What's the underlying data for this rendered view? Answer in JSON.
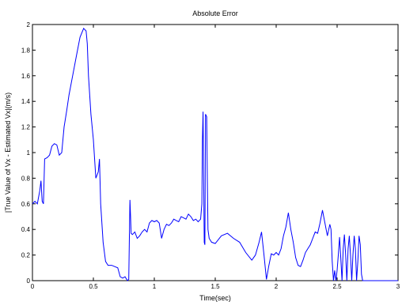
{
  "chart_data": {
    "type": "line",
    "title": "Absolute Error",
    "xlabel": "Time(sec)",
    "ylabel": "|True Value of Vx - Estimated Vx|(m/s)",
    "xlim": [
      0,
      3
    ],
    "ylim": [
      0,
      2
    ],
    "x_ticks": [
      0,
      0.5,
      1,
      1.5,
      2,
      2.5,
      3
    ],
    "x_tick_labels": [
      "0",
      "0.5",
      "1",
      "1.5",
      "2",
      "2.5",
      "3"
    ],
    "y_ticks": [
      0,
      0.2,
      0.4,
      0.6,
      0.8,
      1,
      1.2,
      1.4,
      1.6,
      1.8,
      2
    ],
    "y_tick_labels": [
      "0",
      "0.2",
      "0.4",
      "0.6",
      "0.8",
      "1",
      "1.2",
      "1.4",
      "1.6",
      "1.8",
      "2"
    ],
    "grid": false,
    "line_color": "#0000ff",
    "series": [
      {
        "x": [
          0,
          0.02,
          0.04,
          0.06,
          0.07,
          0.08,
          0.09,
          0.1,
          0.12,
          0.14,
          0.16,
          0.18,
          0.2,
          0.22,
          0.24,
          0.26,
          0.28,
          0.3,
          0.33,
          0.36,
          0.39,
          0.42,
          0.44,
          0.45,
          0.46,
          0.48,
          0.5,
          0.52,
          0.54,
          0.55,
          0.56,
          0.58,
          0.6,
          0.62,
          0.65,
          0.7,
          0.72,
          0.74,
          0.76,
          0.78,
          0.79,
          0.8,
          0.805,
          0.81,
          0.82,
          0.84,
          0.86,
          0.88,
          0.9,
          0.92,
          0.94,
          0.96,
          0.98,
          1.0,
          1.02,
          1.04,
          1.06,
          1.08,
          1.1,
          1.12,
          1.14,
          1.16,
          1.18,
          1.2,
          1.22,
          1.24,
          1.26,
          1.28,
          1.3,
          1.32,
          1.34,
          1.36,
          1.38,
          1.39,
          1.395,
          1.4,
          1.41,
          1.415,
          1.42,
          1.43,
          1.435,
          1.44,
          1.45,
          1.47,
          1.5,
          1.55,
          1.6,
          1.65,
          1.7,
          1.75,
          1.8,
          1.83,
          1.86,
          1.88,
          1.9,
          1.92,
          1.94,
          1.96,
          1.98,
          2.0,
          2.02,
          2.04,
          2.06,
          2.08,
          2.1,
          2.12,
          2.14,
          2.16,
          2.18,
          2.2,
          2.22,
          2.24,
          2.26,
          2.28,
          2.3,
          2.32,
          2.34,
          2.36,
          2.38,
          2.4,
          2.42,
          2.44,
          2.45,
          2.46,
          2.47,
          2.48,
          2.49,
          2.5,
          2.51,
          2.52,
          2.53,
          2.54,
          2.55,
          2.56,
          2.57,
          2.58,
          2.59,
          2.6,
          2.61,
          2.62,
          2.63,
          2.64,
          2.65,
          2.66,
          2.67,
          2.68,
          2.69,
          2.7,
          2.71,
          2.72,
          2.75,
          2.8,
          2.9,
          3.0
        ],
        "y": [
          0.6,
          0.62,
          0.6,
          0.7,
          0.78,
          0.62,
          0.6,
          0.95,
          0.96,
          0.98,
          1.05,
          1.07,
          1.06,
          0.98,
          1.0,
          1.2,
          1.32,
          1.45,
          1.6,
          1.75,
          1.9,
          1.97,
          1.95,
          1.85,
          1.6,
          1.3,
          1.1,
          0.8,
          0.85,
          0.95,
          0.6,
          0.3,
          0.15,
          0.12,
          0.12,
          0.1,
          0.03,
          0.02,
          0.03,
          0.0,
          0.01,
          0.63,
          0.5,
          0.37,
          0.36,
          0.38,
          0.33,
          0.35,
          0.38,
          0.4,
          0.38,
          0.45,
          0.47,
          0.46,
          0.47,
          0.45,
          0.33,
          0.4,
          0.44,
          0.43,
          0.45,
          0.48,
          0.47,
          0.46,
          0.5,
          0.49,
          0.48,
          0.52,
          0.5,
          0.47,
          0.48,
          0.46,
          0.48,
          0.6,
          1.1,
          1.32,
          0.3,
          0.28,
          1.3,
          1.28,
          0.8,
          0.4,
          0.33,
          0.3,
          0.29,
          0.35,
          0.37,
          0.33,
          0.3,
          0.22,
          0.16,
          0.2,
          0.3,
          0.38,
          0.2,
          0.01,
          0.12,
          0.21,
          0.2,
          0.22,
          0.2,
          0.25,
          0.35,
          0.42,
          0.53,
          0.4,
          0.3,
          0.18,
          0.12,
          0.11,
          0.16,
          0.22,
          0.25,
          0.28,
          0.33,
          0.38,
          0.37,
          0.45,
          0.55,
          0.45,
          0.35,
          0.44,
          0.4,
          0.15,
          0.0,
          0.08,
          0.0,
          0.08,
          0.2,
          0.34,
          0.18,
          0.0,
          0.25,
          0.36,
          0.2,
          0.0,
          0.25,
          0.35,
          0.2,
          0.0,
          0.2,
          0.35,
          0.25,
          0.0,
          0.15,
          0.35,
          0.28,
          0.05,
          0.0,
          0.0,
          0.0,
          0.0,
          0.0,
          0.0
        ]
      }
    ]
  }
}
